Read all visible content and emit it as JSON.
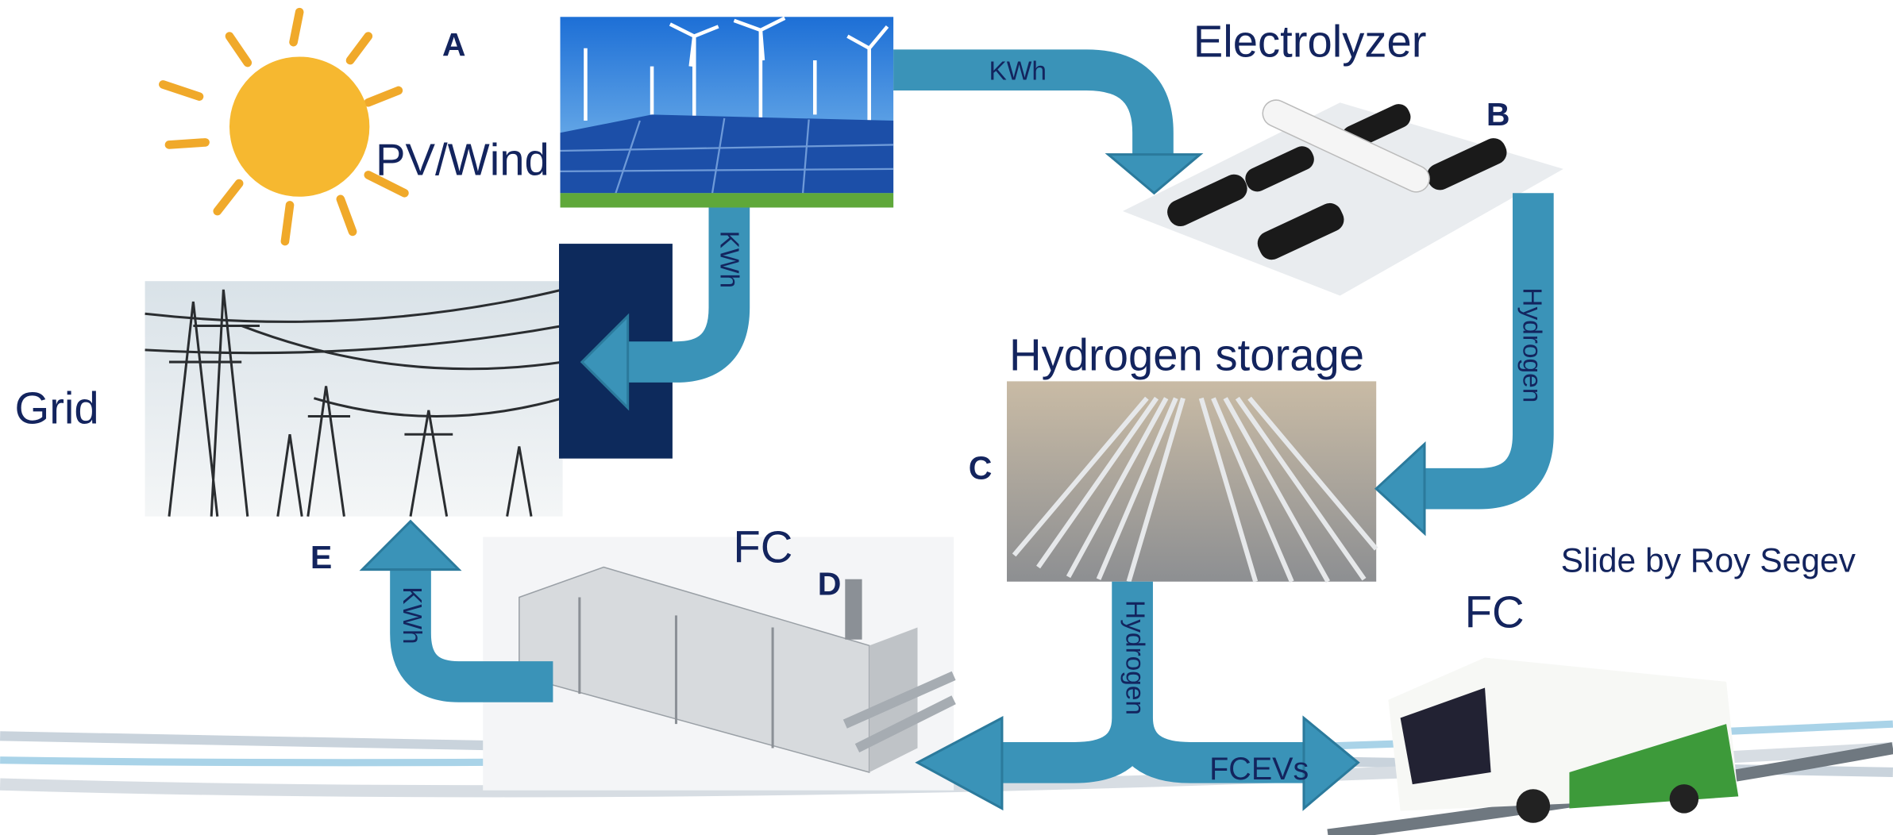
{
  "sources": {
    "letter": "A",
    "label": "PV/Wind"
  },
  "electrolyzer": {
    "letter": "B",
    "label": "Electrolyzer"
  },
  "storage": {
    "letter": "C",
    "label": "Hydrogen storage"
  },
  "fuel_cell": {
    "letter": "D",
    "label": "FC"
  },
  "grid": {
    "letter": "E",
    "label": "Grid"
  },
  "vehicle": {
    "label": "FC"
  },
  "flows": [
    "KWh",
    "KWh",
    "Hydrogen",
    "Hydrogen",
    "FCEVs",
    "KWh"
  ],
  "credit": "Slide by Roy Segev"
}
